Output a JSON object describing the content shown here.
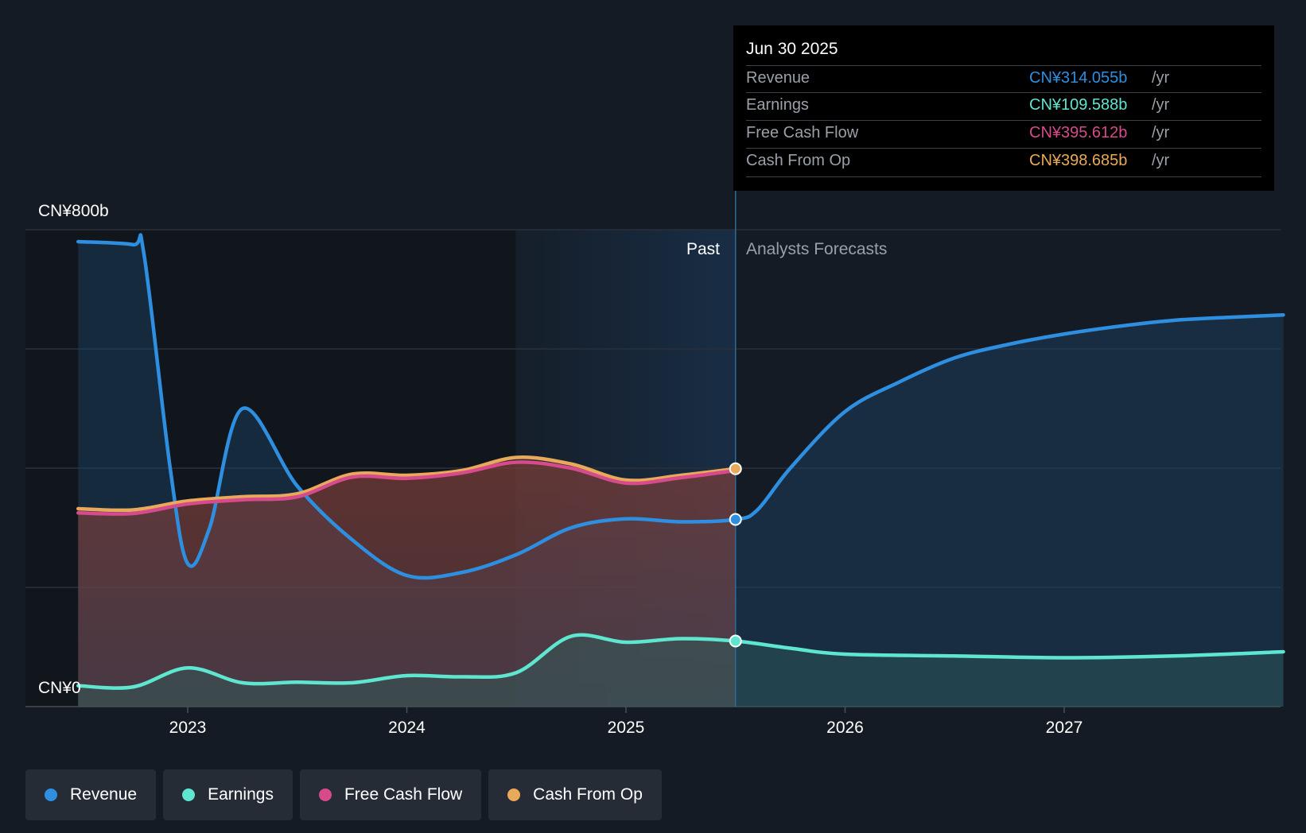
{
  "chart_data": {
    "type": "area",
    "y_axis": {
      "min": 0,
      "max": 800,
      "top_label": "CN¥800b",
      "bottom_label": "CN¥0"
    },
    "x_ticks": [
      "2023",
      "2024",
      "2025",
      "2026",
      "2027"
    ],
    "x_range": [
      2022.5,
      2028.0
    ],
    "divider_date": 2025.5,
    "past_start": 2024.5,
    "past_label": "Past",
    "forecast_label": "Analysts Forecasts",
    "series": [
      {
        "name": "Revenue",
        "color": "#2e8fe0",
        "x": [
          2022.5,
          2022.75,
          2022.8,
          2022.92,
          2023.0,
          2023.1,
          2023.25,
          2023.5,
          2023.75,
          2024.0,
          2024.25,
          2024.5,
          2024.75,
          2025.0,
          2025.25,
          2025.5,
          2025.6,
          2025.75,
          2026.0,
          2026.25,
          2026.5,
          2026.75,
          2027.0,
          2027.25,
          2027.5,
          2027.75,
          2028.0
        ],
        "y": [
          780,
          775,
          760,
          400,
          240,
          300,
          500,
          370,
          280,
          220,
          225,
          255,
          300,
          315,
          310,
          314,
          330,
          400,
          495,
          545,
          585,
          608,
          625,
          638,
          648,
          653,
          657
        ]
      },
      {
        "name": "Earnings",
        "color": "#5ee6d0",
        "x": [
          2022.5,
          2022.75,
          2023.0,
          2023.25,
          2023.5,
          2023.75,
          2024.0,
          2024.25,
          2024.5,
          2024.75,
          2025.0,
          2025.25,
          2025.5,
          2025.75,
          2026.0,
          2026.5,
          2027.0,
          2027.5,
          2028.0
        ],
        "y": [
          35,
          33,
          65,
          40,
          41,
          40,
          52,
          50,
          57,
          118,
          108,
          114,
          110,
          98,
          88,
          85,
          82,
          85,
          92
        ]
      },
      {
        "name": "Free Cash Flow",
        "color": "#d64b8c",
        "x": [
          2022.5,
          2022.75,
          2023.0,
          2023.25,
          2023.5,
          2023.75,
          2024.0,
          2024.25,
          2024.5,
          2024.75,
          2025.0,
          2025.25,
          2025.5
        ],
        "y": [
          325,
          324,
          340,
          347,
          352,
          385,
          383,
          392,
          410,
          400,
          375,
          384,
          396
        ]
      },
      {
        "name": "Cash From Op",
        "color": "#e8a95a",
        "x": [
          2022.5,
          2022.75,
          2023.0,
          2023.25,
          2023.5,
          2023.75,
          2024.0,
          2024.25,
          2024.5,
          2024.75,
          2025.0,
          2025.25,
          2025.5
        ],
        "y": [
          332,
          330,
          345,
          352,
          357,
          390,
          388,
          396,
          418,
          407,
          380,
          388,
          399
        ]
      }
    ]
  },
  "tooltip": {
    "date": "Jun 30 2025",
    "rows": [
      {
        "label": "Revenue",
        "value": "CN¥314.055b",
        "unit": "/yr",
        "color": "#2e8fe0"
      },
      {
        "label": "Earnings",
        "value": "CN¥109.588b",
        "unit": "/yr",
        "color": "#5ee6d0"
      },
      {
        "label": "Free Cash Flow",
        "value": "CN¥395.612b",
        "unit": "/yr",
        "color": "#d64b8c"
      },
      {
        "label": "Cash From Op",
        "value": "CN¥398.685b",
        "unit": "/yr",
        "color": "#e8a95a"
      }
    ]
  },
  "legend": [
    {
      "label": "Revenue",
      "color": "#2e8fe0"
    },
    {
      "label": "Earnings",
      "color": "#5ee6d0"
    },
    {
      "label": "Free Cash Flow",
      "color": "#d64b8c"
    },
    {
      "label": "Cash From Op",
      "color": "#e8a95a"
    }
  ]
}
